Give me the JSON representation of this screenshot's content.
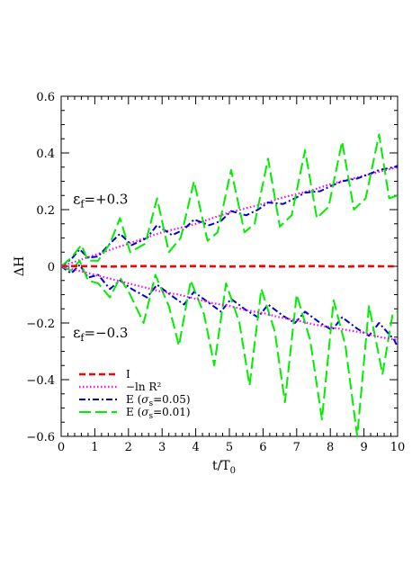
{
  "chart_data": {
    "type": "line",
    "xlabel": "t/T",
    "xlabel_sub": "0",
    "ylabel": "ΔH",
    "xlim": [
      0,
      10
    ],
    "ylim": [
      -0.6,
      0.6
    ],
    "xticks": [
      0,
      1,
      2,
      3,
      4,
      5,
      6,
      7,
      8,
      9,
      10
    ],
    "yticks": [
      -0.6,
      -0.4,
      -0.2,
      0,
      0.2,
      0.4,
      0.6
    ],
    "xtick_labels": [
      "0",
      "1",
      "2",
      "3",
      "4",
      "5",
      "6",
      "7",
      "8",
      "9",
      "10"
    ],
    "ytick_labels": [
      "−0.6",
      "−0.4",
      "−0.2",
      "0",
      "0.2",
      "0.4",
      "0.6"
    ],
    "grid": false,
    "legend_position": "bottom-left",
    "annotations": [
      {
        "symbol": "ε",
        "sub": "f",
        "text": "=+0.3",
        "x": 0.35,
        "y": 0.22
      },
      {
        "symbol": "ε",
        "sub": "f",
        "text": "=−0.3",
        "x": 0.35,
        "y": -0.25
      }
    ],
    "legend": [
      {
        "label": "I",
        "color": "#ff0000",
        "style": "dashed-short"
      },
      {
        "label": "−ln R²",
        "color": "#ff00ff",
        "style": "dotted"
      },
      {
        "label": "E (σs=0.05)",
        "label_main": "E (",
        "label_sym": "σ",
        "label_sub": "s",
        "label_rest": "=0.05)",
        "color": "#0000cc",
        "style": "dashdot"
      },
      {
        "label": "E (σs=0.01)",
        "label_main": "E (",
        "label_sym": "σ",
        "label_sub": "s",
        "label_rest": "=0.01)",
        "color": "#00ee00",
        "style": "dashed-long"
      }
    ],
    "series": [
      {
        "legend_index": 0,
        "color": "#ff0000",
        "x": [
          0,
          0.5,
          1,
          1.5,
          2,
          2.5,
          3,
          3.5,
          4,
          4.5,
          5,
          5.5,
          6,
          6.5,
          7,
          7.5,
          8,
          8.5,
          9,
          9.5,
          10
        ],
        "y": [
          0,
          0.001,
          0,
          -0.001,
          0,
          0.001,
          -0.001,
          0,
          0.001,
          0,
          -0.001,
          0,
          0.001,
          -0.001,
          0,
          0.001,
          0,
          -0.001,
          0.001,
          0,
          0
        ]
      },
      {
        "legend_index": 1,
        "color": "#ff00ff",
        "x": [
          0,
          0.5,
          1,
          1.5,
          2,
          2.5,
          3,
          3.5,
          4,
          4.5,
          5,
          5.5,
          6,
          6.5,
          7,
          7.5,
          8,
          8.5,
          9,
          9.5,
          10
        ],
        "y": [
          0,
          0.02,
          0.04,
          0.06,
          0.08,
          0.1,
          0.12,
          0.135,
          0.15,
          0.17,
          0.19,
          0.205,
          0.22,
          0.24,
          0.255,
          0.27,
          0.29,
          0.305,
          0.32,
          0.335,
          0.35
        ]
      },
      {
        "legend_index": 1,
        "color": "#ff00ff",
        "x": [
          0,
          0.5,
          1,
          1.5,
          2,
          2.5,
          3,
          3.5,
          4,
          4.5,
          5,
          5.5,
          6,
          6.5,
          7,
          7.5,
          8,
          8.5,
          9,
          9.5,
          10
        ],
        "y": [
          0,
          -0.015,
          -0.03,
          -0.045,
          -0.06,
          -0.075,
          -0.09,
          -0.1,
          -0.115,
          -0.13,
          -0.14,
          -0.155,
          -0.165,
          -0.18,
          -0.19,
          -0.205,
          -0.215,
          -0.225,
          -0.235,
          -0.25,
          -0.26
        ]
      },
      {
        "legend_index": 2,
        "color": "#0000cc",
        "x": [
          0,
          0.3,
          0.55,
          0.8,
          1.1,
          1.45,
          1.75,
          2.1,
          2.55,
          2.85,
          3.3,
          3.65,
          3.95,
          4.4,
          4.75,
          5.05,
          5.5,
          5.85,
          6.15,
          6.6,
          6.95,
          7.25,
          7.7,
          8.05,
          8.35,
          8.8,
          9.15,
          9.45,
          9.9,
          10
        ],
        "y": [
          0,
          0.025,
          0.06,
          0.03,
          0.035,
          0.08,
          0.115,
          0.075,
          0.1,
          0.145,
          0.11,
          0.13,
          0.165,
          0.145,
          0.16,
          0.195,
          0.18,
          0.2,
          0.225,
          0.22,
          0.24,
          0.26,
          0.265,
          0.285,
          0.3,
          0.31,
          0.325,
          0.34,
          0.35,
          0.355
        ]
      },
      {
        "legend_index": 2,
        "color": "#0000cc",
        "x": [
          0,
          0.3,
          0.55,
          0.8,
          1.1,
          1.45,
          1.75,
          2.1,
          2.55,
          2.85,
          3.3,
          3.65,
          3.95,
          4.4,
          4.75,
          5.05,
          5.5,
          5.85,
          6.15,
          6.6,
          6.95,
          7.25,
          7.7,
          8.05,
          8.35,
          8.8,
          9.15,
          9.45,
          9.9,
          10
        ],
        "y": [
          0,
          -0.025,
          0.005,
          -0.04,
          -0.03,
          -0.08,
          -0.05,
          -0.08,
          -0.11,
          -0.065,
          -0.105,
          -0.135,
          -0.09,
          -0.13,
          -0.16,
          -0.115,
          -0.155,
          -0.18,
          -0.135,
          -0.175,
          -0.2,
          -0.16,
          -0.2,
          -0.225,
          -0.18,
          -0.22,
          -0.245,
          -0.2,
          -0.26,
          -0.285
        ]
      },
      {
        "legend_index": 3,
        "color": "#00ee00",
        "x": [
          0,
          0.3,
          0.6,
          0.8,
          1.1,
          1.45,
          1.75,
          2.05,
          2.5,
          2.85,
          3.2,
          3.55,
          3.95,
          4.35,
          4.65,
          5.05,
          5.45,
          5.75,
          6.15,
          6.5,
          6.85,
          7.25,
          7.6,
          7.95,
          8.35,
          8.7,
          9.05,
          9.45,
          9.75,
          10
        ],
        "y": [
          0,
          0.03,
          0.075,
          0.02,
          0.02,
          0.08,
          0.17,
          0.05,
          0.08,
          0.24,
          0.05,
          0.1,
          0.3,
          0.09,
          0.12,
          0.34,
          0.12,
          0.15,
          0.38,
          0.14,
          0.18,
          0.41,
          0.17,
          0.21,
          0.44,
          0.2,
          0.24,
          0.465,
          0.24,
          0.25
        ]
      },
      {
        "legend_index": 3,
        "color": "#00ee00",
        "x": [
          0,
          0.3,
          0.55,
          0.8,
          1.1,
          1.45,
          1.75,
          2.05,
          2.45,
          2.8,
          3.2,
          3.5,
          3.85,
          4.25,
          4.55,
          4.9,
          5.3,
          5.6,
          5.95,
          6.35,
          6.65,
          7.0,
          7.4,
          7.75,
          8.1,
          8.45,
          8.8,
          9.15,
          9.55,
          9.85,
          10
        ],
        "y": [
          0,
          -0.015,
          0.02,
          -0.05,
          -0.06,
          -0.11,
          -0.04,
          -0.1,
          -0.2,
          -0.03,
          -0.14,
          -0.28,
          -0.05,
          -0.17,
          -0.35,
          -0.06,
          -0.2,
          -0.42,
          -0.08,
          -0.23,
          -0.48,
          -0.1,
          -0.26,
          -0.54,
          -0.12,
          -0.28,
          -0.6,
          -0.14,
          -0.38,
          -0.17,
          -0.16
        ]
      }
    ]
  }
}
